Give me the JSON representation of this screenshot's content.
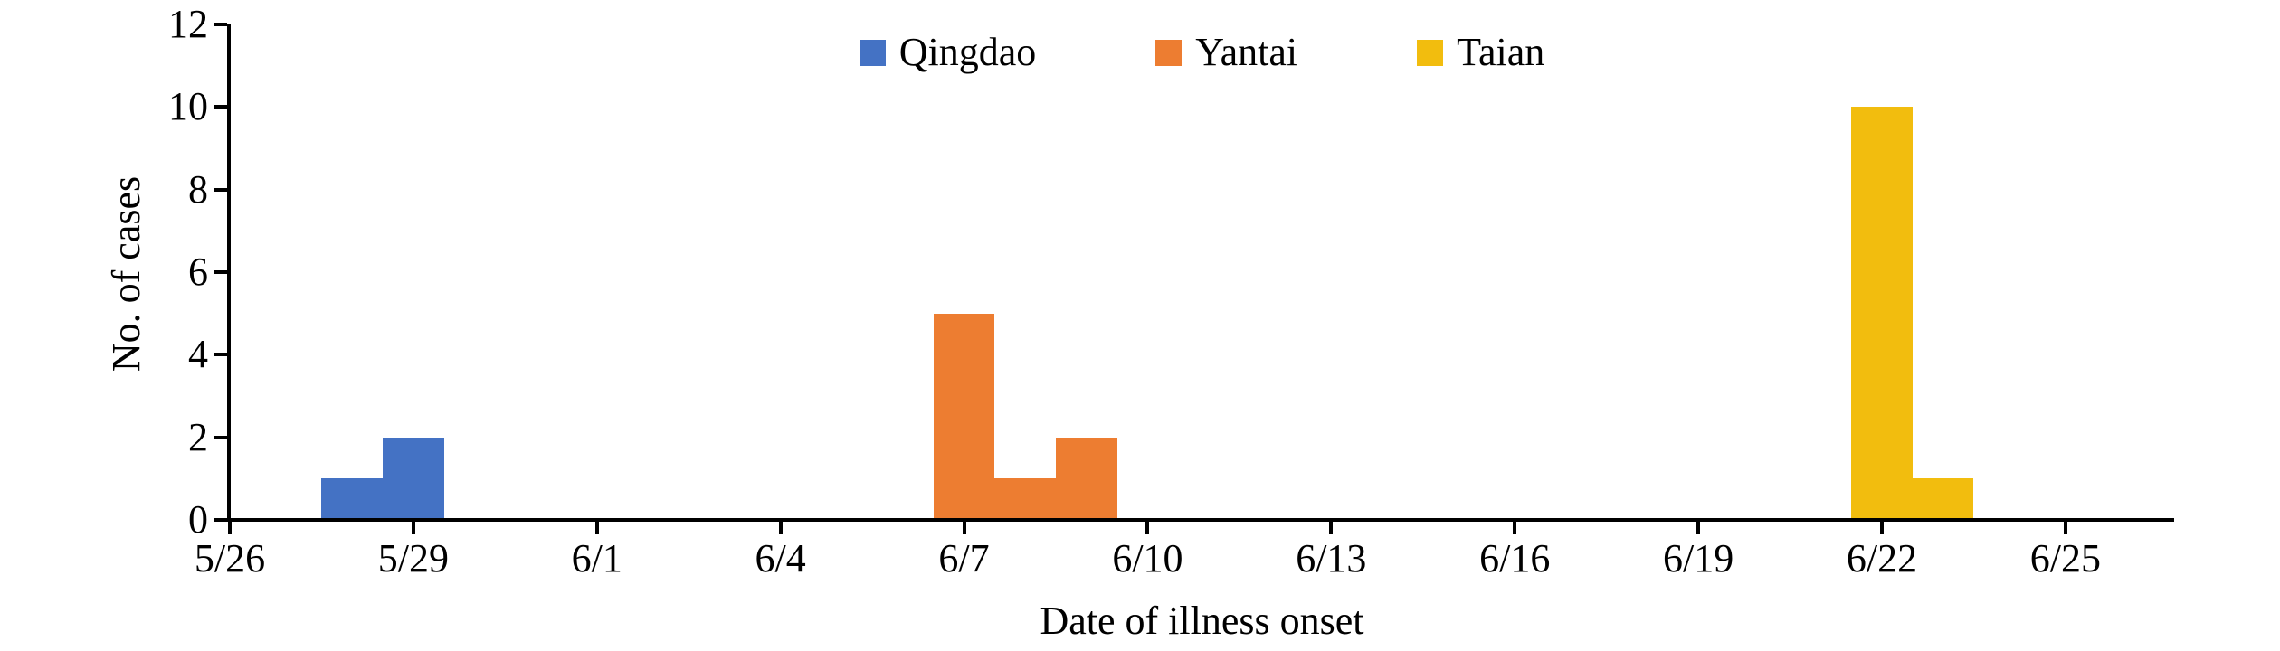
{
  "chart_data": {
    "type": "bar",
    "title": "",
    "xlabel": "Date of illness onset",
    "ylabel": "No. of cases",
    "x_tick_labels": [
      "5/26",
      "5/29",
      "6/1",
      "6/4",
      "6/7",
      "6/10",
      "6/13",
      "6/16",
      "6/19",
      "6/22",
      "6/25"
    ],
    "x_axis_start": "5/26",
    "y_ticks": [
      0,
      2,
      4,
      6,
      8,
      10,
      12
    ],
    "ylim": [
      0,
      12
    ],
    "grid": false,
    "legend_position": "top-center",
    "bar_width_days": 1,
    "series": [
      {
        "name": "Qingdao",
        "color": "#4472C4",
        "points": [
          {
            "date": "5/28",
            "cases": 1
          },
          {
            "date": "5/29",
            "cases": 2
          }
        ]
      },
      {
        "name": "Yantai",
        "color": "#ED7D31",
        "points": [
          {
            "date": "6/7",
            "cases": 5
          },
          {
            "date": "6/8",
            "cases": 1
          },
          {
            "date": "6/9",
            "cases": 2
          }
        ]
      },
      {
        "name": "Taian",
        "color": "#F2BD0E",
        "points": [
          {
            "date": "6/22",
            "cases": 10
          },
          {
            "date": "6/23",
            "cases": 1
          }
        ]
      }
    ]
  }
}
